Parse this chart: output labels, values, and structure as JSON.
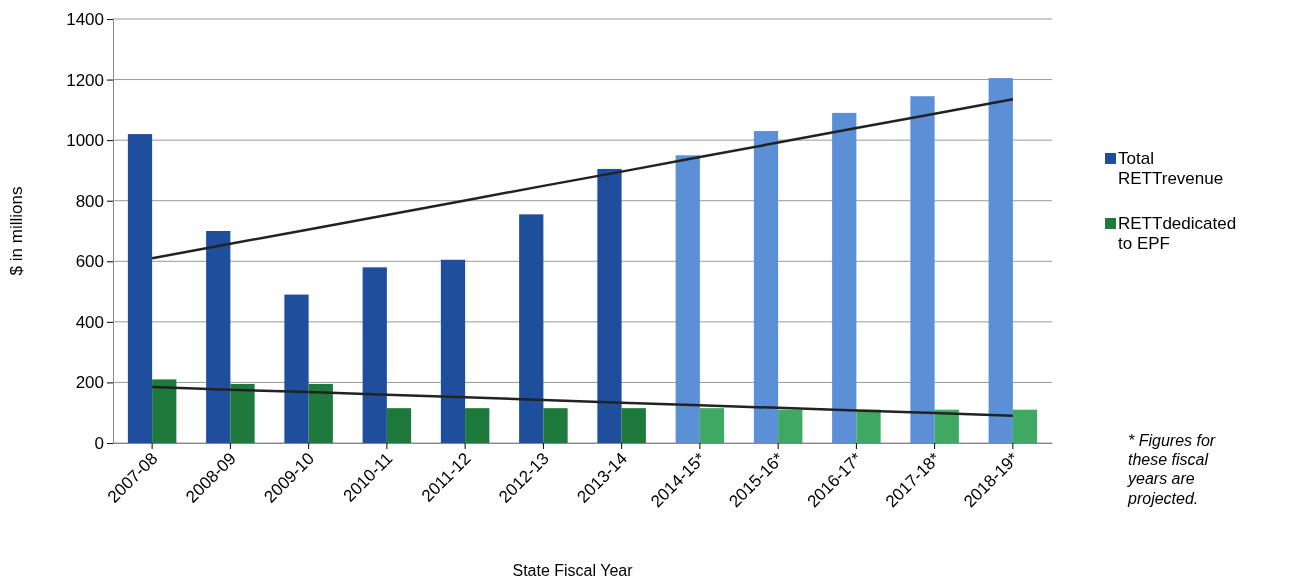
{
  "chart_data": {
    "type": "bar",
    "xlabel": "State Fiscal Year",
    "ylabel": "$ in millions",
    "categories": [
      "2007-08",
      "2008-09",
      "2009-10",
      "2010-11",
      "2011-12",
      "2012-13",
      "2013-14",
      "2014-15*",
      "2015-16*",
      "2016-17*",
      "2017-18*",
      "2018-19*"
    ],
    "series": [
      {
        "name": "Total RETTrevenue",
        "color": "#1f4e9c",
        "colors": [
          "#1f4e9c",
          "#1f4e9c",
          "#1f4e9c",
          "#1f4e9c",
          "#1f4e9c",
          "#1f4e9c",
          "#1f4e9c",
          "#5b8fd6",
          "#5b8fd6",
          "#5b8fd6",
          "#5b8fd6",
          "#5b8fd6"
        ],
        "values": [
          1020,
          700,
          490,
          580,
          605,
          755,
          905,
          950,
          1030,
          1090,
          1145,
          1205
        ]
      },
      {
        "name": "RETTdedicated to EPF",
        "color": "#1e7a3c",
        "colors": [
          "#1e7a3c",
          "#1e7a3c",
          "#1e7a3c",
          "#1e7a3c",
          "#1e7a3c",
          "#1e7a3c",
          "#1e7a3c",
          "#3fa862",
          "#3fa862",
          "#3fa862",
          "#3fa862",
          "#3fa862"
        ],
        "values": [
          210,
          195,
          195,
          115,
          115,
          115,
          115,
          115,
          110,
          110,
          110,
          110
        ]
      },
      {
        "type": "line",
        "color": "#222222",
        "values": [
          610,
          658,
          705,
          753,
          801,
          849,
          896,
          944,
          992,
          1040,
          1087,
          1135
        ]
      },
      {
        "type": "line",
        "color": "#222222",
        "values": [
          185,
          176,
          168,
          159,
          151,
          142,
          133,
          125,
          116,
          107,
          99,
          90
        ]
      }
    ],
    "ylim": [
      0,
      1400
    ],
    "yticks": [
      0,
      200,
      400,
      600,
      800,
      1000,
      1200,
      1400
    ],
    "grid": "y",
    "legend": "right",
    "marker": "none",
    "annotations": [
      "* Figures for these fiscal years are projected."
    ]
  }
}
